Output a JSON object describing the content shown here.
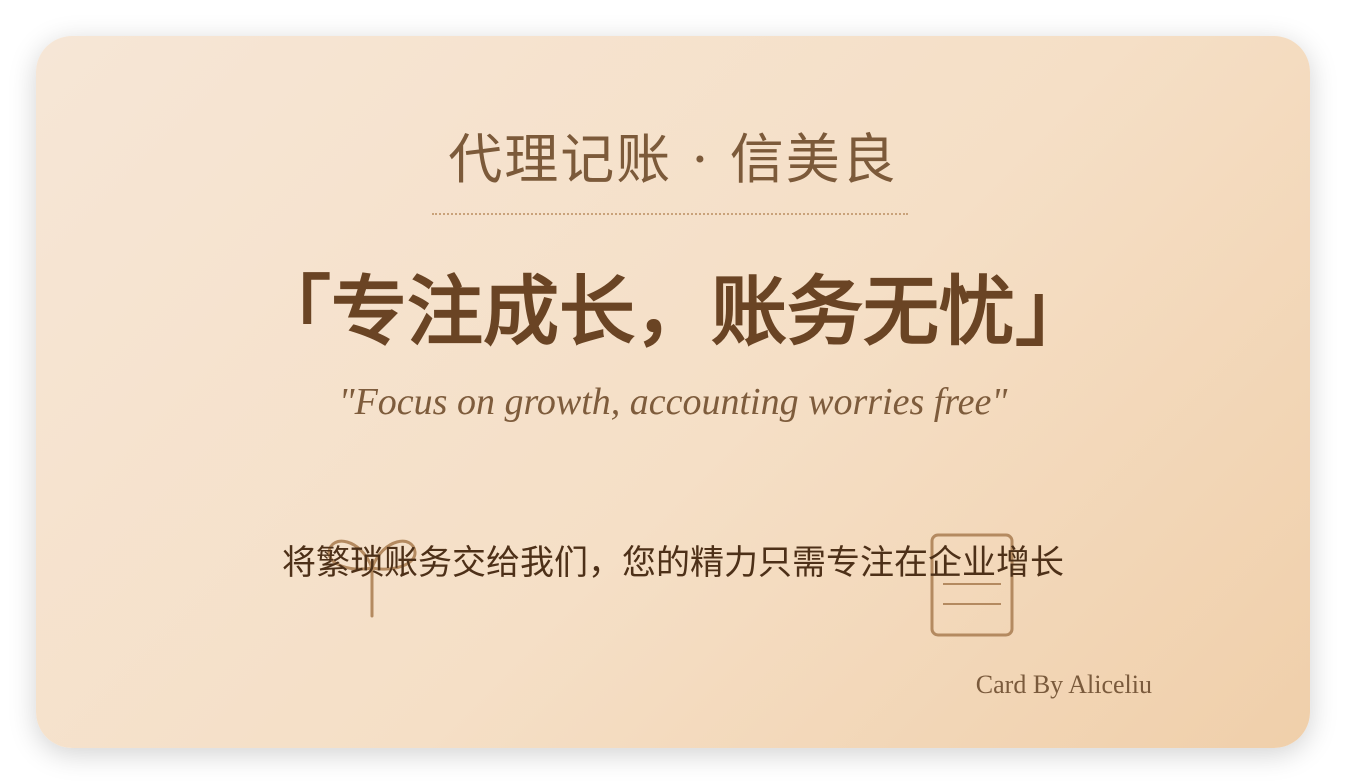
{
  "card": {
    "brand_title": "代理记账 · 信美良",
    "slogan_cn": "「专注成长，账务无忧」",
    "slogan_en": "\"Focus on growth, accounting worries free\"",
    "tagline": "将繁琐账务交给我们，您的精力只需专注在企业增长",
    "signature": "Card By Aliceliu"
  },
  "icons": {
    "left_decoration": "sprout-icon",
    "right_decoration": "document-icon"
  },
  "colors": {
    "background_start": "#f6e6d6",
    "background_end": "#f0cfaa",
    "primary_text": "#6a4424",
    "accent_line": "#b48a60"
  }
}
